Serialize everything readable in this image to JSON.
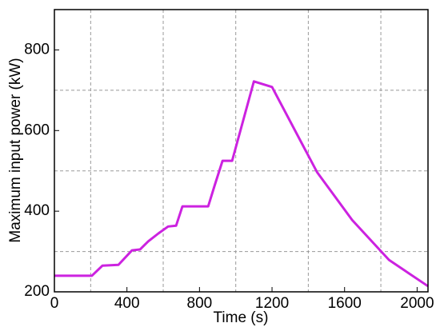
{
  "chart_data": {
    "type": "line",
    "x_label": "Time (s)",
    "y_label": "Maximum input power (kW)",
    "x": [
      0,
      207,
      265,
      353,
      428,
      472,
      517,
      574,
      627,
      671,
      706,
      759,
      848,
      883,
      927,
      980,
      1100,
      1200,
      1448,
      1642,
      1845,
      2060
    ],
    "series": [
      {
        "color": "#cc22e0",
        "values": [
          240,
          240,
          265,
          267,
          303,
          305,
          325,
          345,
          362,
          364,
          412,
          412,
          412,
          463,
          525,
          525,
          722,
          708,
          497,
          378,
          279,
          214
        ]
      }
    ],
    "xlim": [
      0,
      2060
    ],
    "ylim": [
      200,
      900
    ],
    "xticks": [
      0,
      400,
      800,
      1200,
      1600,
      2000
    ],
    "yticks": [
      200,
      400,
      600,
      800
    ],
    "xgrid": [
      200,
      600,
      1000,
      1400,
      1800
    ],
    "ygrid": [
      300,
      500,
      700
    ],
    "grid": true
  }
}
